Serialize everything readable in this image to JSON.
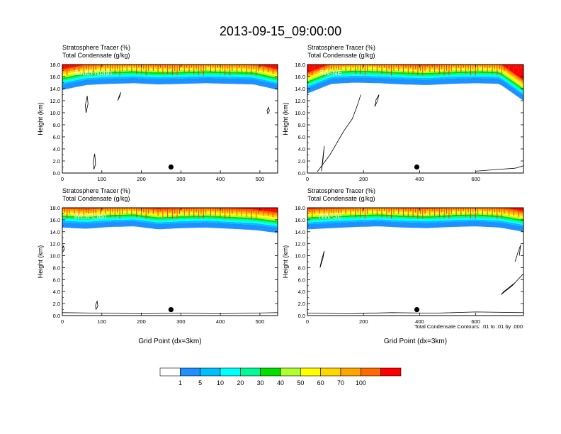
{
  "title": "2013-09-15_09:00:00",
  "panel_left_title": "Stratosphere Tracer   (%)",
  "panel_right_title": "Total Condensate   (g/kg)",
  "footnote": "Total Condensate Contours: .01 to .01 by .000",
  "colorbar": {
    "levels": [
      "1",
      "5",
      "10",
      "20",
      "30",
      "40",
      "50",
      "60",
      "70",
      "100"
    ],
    "colors": [
      "#ffffff",
      "#1e90ff",
      "#00bfff",
      "#00ffff",
      "#00fa9a",
      "#00e000",
      "#adff2f",
      "#ffff00",
      "#ffd700",
      "#ffa500",
      "#ff6a00",
      "#ff0000"
    ]
  },
  "chart_data": [
    {
      "type": "heatmap",
      "label": "South-North",
      "xlabel": "",
      "ylabel": "Height (km)",
      "xlim": [
        0,
        545
      ],
      "ylim": [
        0,
        18
      ],
      "xticks": [
        "0",
        "100",
        "200",
        "300",
        "400",
        "500"
      ],
      "yticks": [
        "0.0",
        "2.0",
        "4.0",
        "6.0",
        "8.0",
        "10.0",
        "12.0",
        "14.0",
        "16.0",
        "18.0"
      ],
      "marker_x": 275,
      "marker_y": 1.0,
      "tracer_base_km": [
        13.8,
        14.6,
        14.8,
        14.9,
        14.7,
        14.8,
        14.9,
        14.8,
        14.7,
        13.8
      ],
      "contours": [
        {
          "x": [
            60,
            65,
            63,
            58,
            60
          ],
          "y": [
            10.0,
            11.5,
            12.8,
            11.2,
            10.0
          ]
        },
        {
          "x": [
            140,
            145,
            148,
            143,
            140
          ],
          "y": [
            12.0,
            12.7,
            13.4,
            12.6,
            12.0
          ]
        },
        {
          "x": [
            80,
            84,
            82,
            78,
            80
          ],
          "y": [
            0.6,
            1.5,
            3.2,
            1.8,
            0.6
          ]
        },
        {
          "x": [
            520,
            524,
            522,
            518,
            520
          ],
          "y": [
            9.8,
            10.3,
            10.9,
            10.4,
            9.8
          ]
        }
      ]
    },
    {
      "type": "heatmap",
      "label": "SW-NE",
      "xlabel": "",
      "ylabel": "Height (km)",
      "xlim": [
        0,
        770
      ],
      "ylim": [
        0,
        18
      ],
      "xticks": [
        "0",
        "200",
        "400",
        "600"
      ],
      "yticks": [
        "0.0",
        "2.0",
        "4.0",
        "6.0",
        "8.0",
        "10.0",
        "12.0",
        "14.0",
        "16.0",
        "18.0"
      ],
      "marker_x": 390,
      "marker_y": 1.0,
      "tracer_base_km": [
        13.2,
        14.8,
        15.0,
        14.9,
        14.7,
        14.6,
        14.8,
        14.9,
        14.8,
        12.0
      ],
      "contours": [
        {
          "x": [
            35,
            80,
            130,
            160,
            180,
            190
          ],
          "y": [
            0.2,
            3.0,
            7.0,
            9.0,
            11.5,
            13.0
          ]
        },
        {
          "x": [
            50,
            55,
            60,
            55,
            50
          ],
          "y": [
            0.3,
            2.0,
            4.5,
            2.5,
            0.3
          ]
        },
        {
          "x": [
            240,
            250,
            255,
            245,
            240
          ],
          "y": [
            11.0,
            12.0,
            13.0,
            12.2,
            11.0
          ]
        },
        {
          "x": [
            600,
            680,
            740,
            770
          ],
          "y": [
            0.3,
            0.6,
            0.8,
            1.2
          ]
        }
      ]
    },
    {
      "type": "heatmap",
      "label": "West-East",
      "xlabel": "Grid Point (dx=3km)",
      "ylabel": "Height (km)",
      "xlim": [
        0,
        545
      ],
      "ylim": [
        0,
        18
      ],
      "xticks": [
        "0",
        "100",
        "200",
        "300",
        "400",
        "500"
      ],
      "yticks": [
        "0.0",
        "2.0",
        "4.0",
        "6.0",
        "8.0",
        "10.0",
        "12.0",
        "14.0",
        "16.0",
        "18.0"
      ],
      "marker_x": 275,
      "marker_y": 1.0,
      "tracer_base_km": [
        14.7,
        14.5,
        14.8,
        14.9,
        14.4,
        14.6,
        14.7,
        14.5,
        14.3,
        13.8
      ],
      "contours": [
        {
          "x": [
            0,
            5,
            3,
            0
          ],
          "y": [
            10.5,
            11.0,
            11.6,
            11.2
          ]
        },
        {
          "x": [
            85,
            90,
            88,
            84,
            85
          ],
          "y": [
            1.0,
            1.6,
            2.4,
            1.7,
            1.0
          ]
        },
        {
          "x": [
            0,
            100,
            200,
            300,
            400,
            545
          ],
          "y": [
            0.5,
            0.4,
            0.3,
            0.4,
            0.3,
            0.5
          ]
        }
      ]
    },
    {
      "type": "heatmap",
      "label": "NW-SE",
      "xlabel": "Grid Point (dx=3km)",
      "ylabel": "Height (km)",
      "xlim": [
        0,
        770
      ],
      "ylim": [
        0,
        18
      ],
      "xticks": [
        "0",
        "200",
        "400",
        "600"
      ],
      "yticks": [
        "0.0",
        "2.0",
        "4.0",
        "6.0",
        "8.0",
        "10.0",
        "12.0",
        "14.0",
        "16.0",
        "18.0"
      ],
      "marker_x": 390,
      "marker_y": 1.0,
      "tracer_base_km": [
        14.4,
        14.6,
        14.8,
        14.9,
        14.7,
        14.6,
        14.8,
        14.9,
        14.7,
        14.0
      ],
      "contours": [
        {
          "x": [
            45,
            55,
            60,
            50,
            45
          ],
          "y": [
            8.0,
            9.5,
            10.8,
            9.2,
            8.0
          ]
        },
        {
          "x": [
            690,
            730,
            770,
            740,
            700,
            690
          ],
          "y": [
            3.5,
            5.0,
            7.0,
            5.5,
            4.0,
            3.5
          ]
        },
        {
          "x": [
            740,
            750,
            760,
            755
          ],
          "y": [
            9.0,
            10.5,
            11.8,
            10.0
          ]
        },
        {
          "x": [
            0,
            150,
            300,
            450,
            600,
            770
          ],
          "y": [
            0.4,
            0.3,
            0.5,
            0.4,
            0.6,
            0.5
          ]
        }
      ]
    }
  ]
}
